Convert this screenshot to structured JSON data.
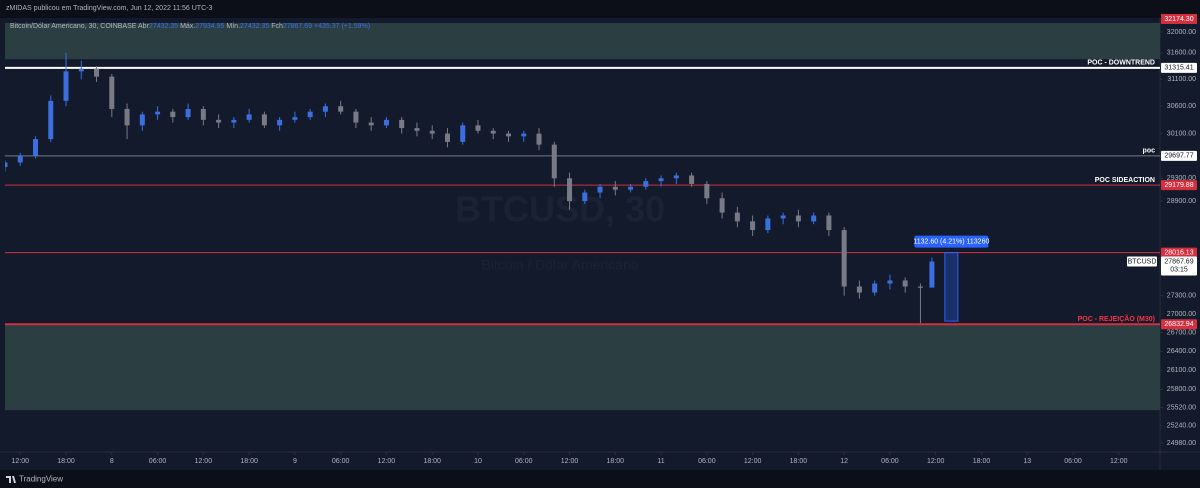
{
  "header": {
    "byline": "zMIDAS publicou em TradingView.com, Jun 12, 2022 11:56 UTC-3",
    "symbol": "Bitcoin/Dólar Americano, 30, COINBASE",
    "open_label": "Abr",
    "high_label": "Máx.",
    "low_label": "Mín.",
    "close_label": "Fch",
    "change": "+435.37 (+1.59%)"
  },
  "chart_data": {
    "type": "candlestick",
    "log_scale": true,
    "up_color": "#3b6fe0",
    "down_color": "#787b86",
    "xlim": [
      10,
      161.4
    ],
    "ylim": [
      24845,
      32271
    ],
    "x": [
      10,
      12,
      14,
      16,
      18,
      20,
      22,
      24,
      26,
      28,
      30,
      32,
      34,
      36,
      38,
      40,
      42,
      44,
      46,
      48,
      50,
      52,
      54,
      56,
      58,
      60,
      62,
      64,
      66,
      68,
      70,
      72,
      74,
      76,
      78,
      80,
      82,
      84,
      86,
      88,
      90,
      92,
      94,
      96,
      98,
      100,
      102,
      104,
      106,
      108,
      110,
      112,
      114,
      116,
      118,
      120,
      122,
      124,
      126,
      128,
      130,
      131.5
    ],
    "open": [
      29500,
      29580,
      29700,
      30000,
      30700,
      31250,
      31300,
      31150,
      30550,
      30250,
      30450,
      30500,
      30400,
      30550,
      30350,
      30300,
      30350,
      30450,
      30250,
      30350,
      30400,
      30500,
      30600,
      30500,
      30300,
      30250,
      30350,
      30200,
      30150,
      30100,
      29950,
      30250,
      30150,
      30100,
      30050,
      30100,
      29900,
      29300,
      28900,
      29050,
      29150,
      29100,
      29150,
      29250,
      29300,
      29350,
      29200,
      28950,
      28700,
      28550,
      28400,
      28600,
      28650,
      28550,
      28650,
      28400,
      27450,
      27350,
      27500,
      27550,
      27450,
      27432.35
    ],
    "high": [
      29620,
      29750,
      30050,
      30800,
      31600,
      31450,
      31350,
      31200,
      30650,
      30500,
      30600,
      30550,
      30650,
      30600,
      30450,
      30400,
      30550,
      30500,
      30400,
      30500,
      30550,
      30650,
      30700,
      30550,
      30400,
      30400,
      30400,
      30300,
      30250,
      30200,
      30300,
      30350,
      30200,
      30150,
      30150,
      30200,
      29950,
      29400,
      29100,
      29200,
      29250,
      29200,
      29300,
      29350,
      29400,
      29400,
      29250,
      29050,
      28800,
      28650,
      28650,
      28700,
      28750,
      28700,
      28700,
      28450,
      27550,
      27550,
      27650,
      27600,
      27500,
      27934.95
    ],
    "low": [
      29420,
      29520,
      29650,
      29950,
      30600,
      31100,
      31050,
      30400,
      30000,
      30150,
      30350,
      30300,
      30350,
      30250,
      30200,
      30200,
      30300,
      30200,
      30150,
      30300,
      30350,
      30400,
      30450,
      30200,
      30150,
      30200,
      30100,
      30050,
      30000,
      29850,
      29900,
      30100,
      30000,
      29950,
      29950,
      29800,
      29150,
      28750,
      28850,
      28950,
      29000,
      29050,
      29100,
      29150,
      29200,
      29150,
      28850,
      28600,
      28450,
      28300,
      28350,
      28500,
      28450,
      28500,
      28300,
      27300,
      27250,
      27300,
      27400,
      27350,
      26850,
      27432.35
    ],
    "close": [
      29580,
      29700,
      30000,
      30700,
      31250,
      31300,
      31150,
      30550,
      30250,
      30450,
      30500,
      30400,
      30550,
      30350,
      30300,
      30350,
      30450,
      30250,
      30350,
      30400,
      30500,
      30600,
      30500,
      30300,
      30250,
      30350,
      30200,
      30150,
      30100,
      29950,
      30250,
      30150,
      30100,
      30050,
      30100,
      29900,
      29300,
      28900,
      29050,
      29150,
      29100,
      29150,
      29250,
      29300,
      29350,
      29200,
      28950,
      28700,
      28550,
      28400,
      28600,
      28650,
      28550,
      28650,
      28400,
      27450,
      27350,
      27500,
      27550,
      27450,
      27430,
      27867.69
    ],
    "yticks": [
      {
        "value": 32000,
        "label": "32000.00"
      },
      {
        "value": 31600,
        "label": "31600.00"
      },
      {
        "value": 31100,
        "label": "31100.00"
      },
      {
        "value": 30600,
        "label": "30600.00"
      },
      {
        "value": 30100,
        "label": "30100.00"
      },
      {
        "value": 29300,
        "label": "29300.00"
      },
      {
        "value": 28900,
        "label": "28900.00"
      },
      {
        "value": 27300,
        "label": "27300.00"
      },
      {
        "value": 27000,
        "label": "27000.00"
      },
      {
        "value": 26700,
        "label": "26700.00"
      },
      {
        "value": 26400,
        "label": "26400.00"
      },
      {
        "value": 26100,
        "label": "26100.00"
      },
      {
        "value": 25800,
        "label": "25800.00"
      },
      {
        "value": 25520,
        "label": "25520.00"
      },
      {
        "value": 25240,
        "label": "25240.00"
      },
      {
        "value": 24980,
        "label": "24980.00"
      }
    ],
    "xticks": [
      {
        "value": 12,
        "label": "12:00"
      },
      {
        "value": 18,
        "label": "18:00"
      },
      {
        "value": 24,
        "label": "8"
      },
      {
        "value": 30,
        "label": "06:00"
      },
      {
        "value": 36,
        "label": "12:00"
      },
      {
        "value": 42,
        "label": "18:00"
      },
      {
        "value": 48,
        "label": "9"
      },
      {
        "value": 54,
        "label": "06:00"
      },
      {
        "value": 60,
        "label": "12:00"
      },
      {
        "value": 66,
        "label": "18:00"
      },
      {
        "value": 72,
        "label": "10"
      },
      {
        "value": 78,
        "label": "06:00"
      },
      {
        "value": 84,
        "label": "12:00"
      },
      {
        "value": 90,
        "label": "18:00"
      },
      {
        "value": 96,
        "label": "11"
      },
      {
        "value": 102,
        "label": "06:00"
      },
      {
        "value": 108,
        "label": "12:00"
      },
      {
        "value": 114,
        "label": "18:00"
      },
      {
        "value": 120,
        "label": "12"
      },
      {
        "value": 126,
        "label": "06:00"
      },
      {
        "value": 132,
        "label": "12:00"
      },
      {
        "value": 138,
        "label": "18:00"
      },
      {
        "value": 144,
        "label": "13"
      },
      {
        "value": 150,
        "label": "06:00"
      },
      {
        "value": 156,
        "label": "12:00"
      }
    ],
    "zones": [
      {
        "from": 31480,
        "to": 32174.3,
        "color": "#2b3f43"
      },
      {
        "from": 25480,
        "to": 26832.94,
        "color": "#2b3f43"
      }
    ],
    "top_marker": {
      "value": 32174.3,
      "label": "32174.30",
      "color": "#d32f3f"
    },
    "levels": [
      {
        "name": "POC - DOWNTREND",
        "value": 31315.41,
        "color": "#ffffff",
        "width": 2,
        "text_color": "#ffffff"
      },
      {
        "name": "poc",
        "value": 29697.77,
        "color": "#787b86",
        "width": 1,
        "text_color": "#ffffff"
      },
      {
        "name": "POC SIDEACTION",
        "value": 29179.88,
        "color": "#d32f3f",
        "width": 1,
        "text_color": "#ffffff"
      },
      {
        "value": 28016.13,
        "color": "#d32f3f",
        "width": 1
      },
      {
        "name": "POC - REJEIÇÃO (M30)",
        "value": 26832.94,
        "color": "#d32f3f",
        "width": 2,
        "text_color": "#f23645"
      }
    ],
    "measure": {
      "label": "1132.60 (4.21%) 113260",
      "from": 26883.53,
      "to": 28016.13,
      "x": [
        133.2,
        134.9
      ],
      "color": "#2962ff"
    },
    "symbol_tag": "BTCUSD",
    "countdown": "03:15",
    "watermark": "BTCUSD, 30",
    "watermark_sub": "Bitcoin / Dólar Americano"
  },
  "footer": {
    "brand": "TradingView"
  }
}
